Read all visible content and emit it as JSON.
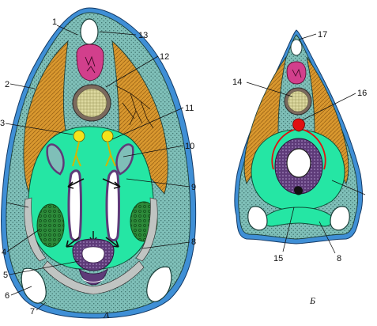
{
  "colors": {
    "epidermis": "#3f8fd6",
    "mesenchyme": "#7fbfb8",
    "muscle": "#d9982f",
    "coelom": "#25e6a4",
    "gut_wall": "#5e3b79",
    "nerve_tube": "#d23f8c",
    "notochord": "#ddd9a0",
    "gonad": "#2d8a3a",
    "yellow": "#f4e31b",
    "vessel": "#e01010",
    "outline": "#1b3f3a"
  },
  "labels": {
    "l1": "1",
    "l2": "2",
    "l3": "3",
    "l4": "4",
    "l5": "5",
    "l6": "6",
    "l7": "7",
    "l8a": "8",
    "l9": "9",
    "l10": "10",
    "l11": "11",
    "l12": "12",
    "l13": "13",
    "l14": "14",
    "l15": "15",
    "l16": "16",
    "l17": "17",
    "l8b": "8"
  },
  "captions": {
    "a": "A",
    "b": "Б"
  }
}
